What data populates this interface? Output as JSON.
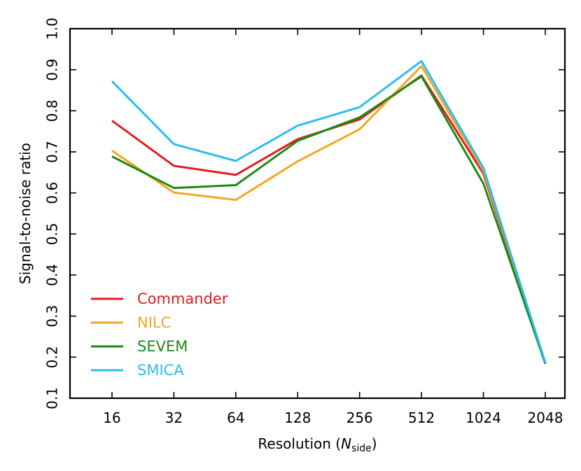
{
  "chart_data": {
    "type": "line",
    "title": "",
    "xlabel_prefix": "Resolution (",
    "xlabel_symbol": "N",
    "xlabel_subscript": "side",
    "xlabel_suffix": ")",
    "ylabel": "Signal-to-noise ratio",
    "categories": [
      "16",
      "32",
      "64",
      "128",
      "256",
      "512",
      "1024",
      "2048"
    ],
    "ylim": [
      0.1,
      1.0
    ],
    "yticks": [
      "0.1",
      "0.2",
      "0.3",
      "0.4",
      "0.5",
      "0.6",
      "0.7",
      "0.8",
      "0.9",
      "1.0"
    ],
    "grid": false,
    "legend_position": "lower-left",
    "series": [
      {
        "name": "Commander",
        "color": "#e41a1c",
        "values": [
          0.776,
          0.666,
          0.644,
          0.731,
          0.779,
          0.886,
          0.647,
          0.185
        ]
      },
      {
        "name": "NILC",
        "color": "#f5a623",
        "values": [
          0.703,
          0.601,
          0.583,
          0.677,
          0.755,
          0.909,
          0.654,
          0.186
        ]
      },
      {
        "name": "SEVEM",
        "color": "#1b8a12",
        "values": [
          0.689,
          0.612,
          0.619,
          0.727,
          0.784,
          0.884,
          0.623,
          0.184
        ]
      },
      {
        "name": "SMICA",
        "color": "#2bbcef",
        "values": [
          0.872,
          0.719,
          0.678,
          0.764,
          0.809,
          0.921,
          0.661,
          0.187
        ]
      }
    ]
  }
}
